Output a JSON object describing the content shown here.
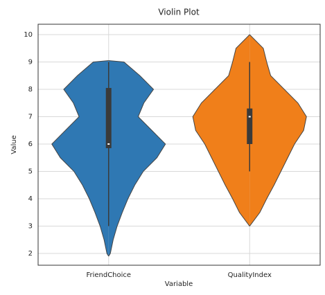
{
  "chart_data": {
    "type": "violin",
    "title": "Violin Plot",
    "xlabel": "Variable",
    "ylabel": "Value",
    "categories": [
      "FriendChoice",
      "QualityIndex"
    ],
    "ylim": [
      1.57,
      10.38
    ],
    "yticks": [
      2,
      3,
      4,
      5,
      6,
      7,
      8,
      9,
      10
    ],
    "grid": true,
    "violins": [
      {
        "color": "#2f78b3",
        "y": [
          1.9,
          2,
          2.5,
          3,
          3.5,
          4,
          4.5,
          5,
          5.5,
          6,
          6.5,
          7,
          7.5,
          8,
          8.5,
          9,
          9.05
        ],
        "density": [
          0,
          0.03,
          0.08,
          0.15,
          0.24,
          0.34,
          0.46,
          0.61,
          0.85,
          1,
          0.76,
          0.52,
          0.62,
          0.79,
          0.55,
          0.27,
          0
        ],
        "whisker_low": 3,
        "q1": 5.85,
        "median": 6,
        "q3": 8.05,
        "whisker_high": 9
      },
      {
        "color": "#f07f1a",
        "y": [
          3,
          3.5,
          4,
          4.5,
          5,
          5.5,
          6,
          6.5,
          7,
          7.5,
          8,
          8.5,
          9,
          9.5,
          10
        ],
        "density": [
          0,
          0.18,
          0.3,
          0.43,
          0.55,
          0.67,
          0.79,
          0.95,
          1,
          0.85,
          0.61,
          0.37,
          0.3,
          0.24,
          0
        ],
        "whisker_low": 5,
        "q1": 6,
        "median": 7,
        "q3": 7.3,
        "whisker_high": 9
      }
    ]
  }
}
